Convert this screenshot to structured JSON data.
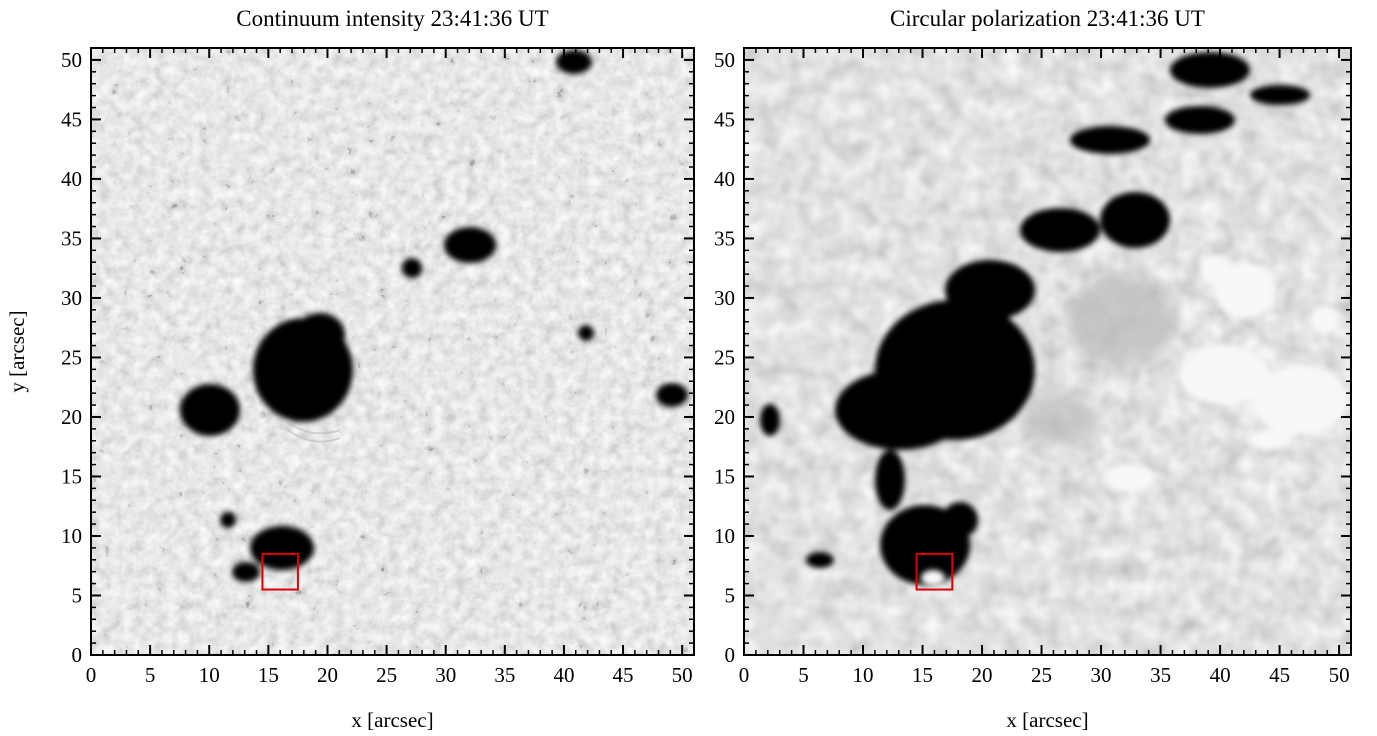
{
  "figure": {
    "panels": [
      {
        "id": "continuum",
        "title": "Continuum intensity 23:41:36 UT",
        "xlabel": "x [arcsec]",
        "ylabel": "y [arcsec]",
        "xlim": [
          0,
          51
        ],
        "ylim": [
          0,
          51
        ],
        "box": {
          "x": [
            14.5,
            17.5
          ],
          "y": [
            5.5,
            8.5
          ],
          "color": "#e00000"
        }
      },
      {
        "id": "circular-polarization",
        "title": "Circular polarization 23:41:36 UT",
        "xlabel": "x [arcsec]",
        "ylabel": "",
        "xlim": [
          0,
          51
        ],
        "ylim": [
          0,
          51
        ],
        "box": {
          "x": [
            14.5,
            17.5
          ],
          "y": [
            5.5,
            8.5
          ],
          "color": "#e00000"
        }
      }
    ],
    "xticks": [
      "0",
      "5",
      "10",
      "15",
      "20",
      "25",
      "30",
      "35",
      "40",
      "45",
      "50"
    ],
    "yticks": [
      "0",
      "5",
      "10",
      "15",
      "20",
      "25",
      "30",
      "35",
      "40",
      "45",
      "50"
    ],
    "colors": {
      "granulation_mid": "#8c8c8c",
      "polarization_background": "#8a8a8a",
      "highlight_box": "#e00000"
    }
  }
}
